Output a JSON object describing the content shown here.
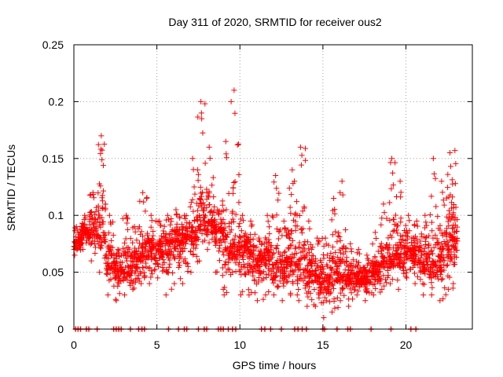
{
  "chart_data": {
    "type": "scatter",
    "title": "Day 311 of 2020, SRMTID for receiver ous2",
    "xlabel": "GPS time / hours",
    "ylabel": "SRMTID / TECUs",
    "xlim": [
      0,
      24
    ],
    "ylim": [
      0,
      0.25
    ],
    "x_ticks": [
      0,
      5,
      10,
      15,
      20
    ],
    "x_tick_labels": [
      "0",
      "5",
      "10",
      "15",
      "20"
    ],
    "y_ticks": [
      0,
      0.05,
      0.1,
      0.15,
      0.2,
      0.25
    ],
    "y_tick_labels": [
      "0",
      "0.05",
      "0.1",
      "0.15",
      "0.2",
      "0.25"
    ],
    "grid": true,
    "marker": "plus",
    "colors": {
      "series": "#ff0000",
      "grid": "#a0a0a0",
      "axes": "#000000"
    },
    "series": [
      {
        "name": "SRMTID",
        "sample_step_hours": 0.5,
        "x": [
          0.1,
          0.6,
          1.1,
          1.6,
          2.1,
          2.6,
          3.1,
          3.6,
          4.1,
          4.6,
          5.1,
          5.6,
          6.1,
          6.6,
          7.1,
          7.6,
          8.1,
          8.6,
          9.1,
          9.6,
          10.1,
          10.6,
          11.1,
          11.6,
          12.1,
          12.6,
          13.1,
          13.6,
          14.1,
          14.6,
          15.1,
          15.6,
          16.1,
          16.6,
          17.1,
          17.6,
          18.1,
          18.6,
          19.1,
          19.6,
          20.1,
          20.6,
          21.1,
          21.6,
          22.1,
          22.6,
          22.9
        ],
        "median": [
          0.075,
          0.085,
          0.09,
          0.085,
          0.06,
          0.05,
          0.055,
          0.06,
          0.065,
          0.07,
          0.07,
          0.075,
          0.08,
          0.08,
          0.085,
          0.1,
          0.095,
          0.085,
          0.07,
          0.075,
          0.07,
          0.065,
          0.06,
          0.065,
          0.06,
          0.055,
          0.06,
          0.055,
          0.05,
          0.045,
          0.045,
          0.05,
          0.05,
          0.045,
          0.045,
          0.045,
          0.05,
          0.06,
          0.065,
          0.065,
          0.07,
          0.065,
          0.06,
          0.06,
          0.065,
          0.075,
          0.08
        ],
        "upper": [
          0.09,
          0.1,
          0.12,
          0.17,
          0.1,
          0.07,
          0.1,
          0.09,
          0.12,
          0.1,
          0.095,
          0.1,
          0.105,
          0.1,
          0.15,
          0.2,
          0.16,
          0.105,
          0.165,
          0.21,
          0.1,
          0.095,
          0.08,
          0.1,
          0.135,
          0.095,
          0.14,
          0.16,
          0.095,
          0.08,
          0.08,
          0.115,
          0.13,
          0.075,
          0.07,
          0.065,
          0.085,
          0.11,
          0.15,
          0.13,
          0.1,
          0.095,
          0.1,
          0.15,
          0.13,
          0.155,
          0.157
        ],
        "lower": [
          0.065,
          0.07,
          0.06,
          0.05,
          0.03,
          0.025,
          0.03,
          0.035,
          0.04,
          0.04,
          0.045,
          0.03,
          0.04,
          0.04,
          0.05,
          0.06,
          0.07,
          0.05,
          0.03,
          0.05,
          0.03,
          0.03,
          0.025,
          0.03,
          0.03,
          0.025,
          0.03,
          0.025,
          0.02,
          0.02,
          0.01,
          0.015,
          0.025,
          0.02,
          0.03,
          0.025,
          0.03,
          0.035,
          0.04,
          0.035,
          0.045,
          0.04,
          0.03,
          0.03,
          0.025,
          0.035,
          0.04
        ]
      }
    ],
    "zero_markers_x": [
      0.1,
      0.25,
      0.4,
      0.75,
      0.9,
      1.4,
      2.4,
      2.55,
      2.7,
      2.85,
      3.4,
      3.9,
      4.1,
      4.25,
      5.7,
      6.3,
      6.65,
      6.8,
      7.5,
      7.85,
      8.0,
      8.7,
      8.85,
      9.0,
      9.3,
      9.55,
      9.75,
      11.3,
      11.5,
      11.85,
      12.5,
      13.3,
      13.5,
      13.75,
      14.0,
      15.0,
      15.1,
      15.85,
      16.5,
      16.65,
      17.9,
      19.1,
      20.3,
      20.6
    ]
  }
}
